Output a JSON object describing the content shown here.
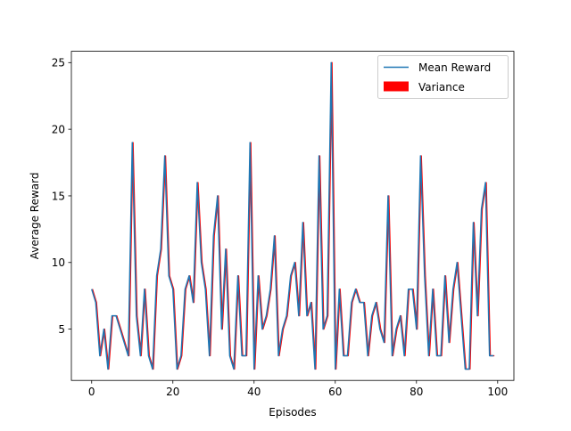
{
  "chart_data": {
    "type": "line",
    "title": "",
    "xlabel": "Episodes",
    "ylabel": "Average Reward",
    "xlim": [
      -5,
      104
    ],
    "ylim": [
      1.15,
      25.85
    ],
    "xticks": [
      0,
      20,
      40,
      60,
      80,
      100
    ],
    "yticks": [
      5,
      10,
      15,
      20,
      25
    ],
    "xtick_labels": [
      "0",
      "20",
      "40",
      "60",
      "80",
      "100"
    ],
    "ytick_labels": [
      "5",
      "10",
      "15",
      "20",
      "25"
    ],
    "grid": false,
    "legend_position": "upper-right",
    "x": [
      0,
      1,
      2,
      3,
      4,
      5,
      6,
      7,
      8,
      9,
      10,
      11,
      12,
      13,
      14,
      15,
      16,
      17,
      18,
      19,
      20,
      21,
      22,
      23,
      24,
      25,
      26,
      27,
      28,
      29,
      30,
      31,
      32,
      33,
      34,
      35,
      36,
      37,
      38,
      39,
      40,
      41,
      42,
      43,
      44,
      45,
      46,
      47,
      48,
      49,
      50,
      51,
      52,
      53,
      54,
      55,
      56,
      57,
      58,
      59,
      60,
      61,
      62,
      63,
      64,
      65,
      66,
      67,
      68,
      69,
      70,
      71,
      72,
      73,
      74,
      75,
      76,
      77,
      78,
      79,
      80,
      81,
      82,
      83,
      84,
      85,
      86,
      87,
      88,
      89,
      90,
      91,
      92,
      93,
      94,
      95,
      96,
      97,
      98,
      99
    ],
    "series": [
      {
        "name": "Mean Reward",
        "color": "#1f77b4",
        "values": [
          8,
          7,
          3,
          5,
          2,
          6,
          6,
          5,
          4,
          3,
          19,
          6,
          3,
          8,
          3,
          2,
          9,
          11,
          18,
          9,
          8,
          2,
          3,
          8,
          9,
          7,
          16,
          10,
          8,
          3,
          12,
          15,
          5,
          11,
          3,
          2,
          9,
          3,
          3,
          19,
          2,
          9,
          5,
          6,
          8,
          12,
          3,
          5,
          6,
          9,
          10,
          6,
          13,
          6,
          7,
          2,
          18,
          5,
          6,
          25,
          2,
          8,
          3,
          3,
          7,
          8,
          7,
          7,
          3,
          6,
          7,
          5,
          4,
          15,
          3,
          5,
          6,
          3,
          8,
          8,
          5,
          18,
          9,
          3,
          8,
          3,
          3,
          9,
          4,
          8,
          10,
          6,
          2,
          2,
          13,
          6,
          14,
          16,
          3,
          3
        ]
      },
      {
        "name": "Variance",
        "color": "#ff0000",
        "values": [
          8,
          7,
          3,
          5,
          2,
          6,
          6,
          5,
          4,
          3,
          19,
          6,
          3,
          8,
          3,
          2,
          9,
          11,
          18,
          9,
          8,
          2,
          3,
          8,
          9,
          7,
          16,
          10,
          8,
          3,
          12,
          15,
          5,
          11,
          3,
          2,
          9,
          3,
          3,
          19,
          2,
          9,
          5,
          6,
          8,
          12,
          3,
          5,
          6,
          9,
          10,
          6,
          13,
          6,
          7,
          2,
          18,
          5,
          6,
          25,
          2,
          8,
          3,
          3,
          7,
          8,
          7,
          7,
          3,
          6,
          7,
          5,
          4,
          15,
          3,
          5,
          6,
          3,
          8,
          8,
          5,
          18,
          9,
          3,
          8,
          3,
          3,
          9,
          4,
          8,
          10,
          6,
          2,
          2,
          13,
          6,
          14,
          16,
          3,
          3
        ]
      }
    ]
  }
}
